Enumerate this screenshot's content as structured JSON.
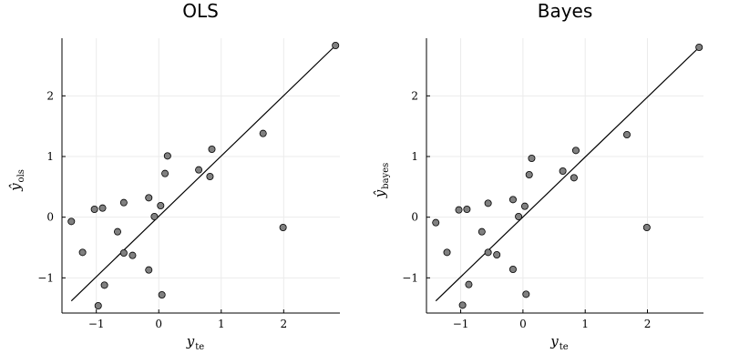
{
  "chart_data": [
    {
      "type": "scatter",
      "title": "OLS",
      "xlabel": {
        "main": "y",
        "sub": "te"
      },
      "ylabel": {
        "main": "ŷ",
        "sub": "ols"
      },
      "xlim": [
        -1.55,
        2.9
      ],
      "ylim": [
        -1.58,
        2.95
      ],
      "xticks": [
        -1,
        0,
        1,
        2
      ],
      "yticks": [
        -1,
        0,
        1,
        2
      ],
      "xtick_labels": [
        "−1",
        "0",
        "1",
        "2"
      ],
      "ytick_labels": [
        "−1",
        "0",
        "1",
        "2"
      ],
      "grid": true,
      "reference_line": {
        "x": [
          -1.4,
          2.83
        ],
        "y": [
          -1.38,
          2.83
        ]
      },
      "points": [
        {
          "x": -1.4,
          "y": -0.07
        },
        {
          "x": -1.22,
          "y": -0.58
        },
        {
          "x": -1.03,
          "y": 0.13
        },
        {
          "x": -0.97,
          "y": -1.46
        },
        {
          "x": -0.9,
          "y": 0.15
        },
        {
          "x": -0.87,
          "y": -1.12
        },
        {
          "x": -0.66,
          "y": -0.24
        },
        {
          "x": -0.56,
          "y": 0.24
        },
        {
          "x": -0.56,
          "y": -0.59
        },
        {
          "x": -0.42,
          "y": -0.63
        },
        {
          "x": -0.16,
          "y": 0.32
        },
        {
          "x": -0.16,
          "y": -0.87
        },
        {
          "x": -0.07,
          "y": 0.01
        },
        {
          "x": 0.03,
          "y": 0.19
        },
        {
          "x": 0.05,
          "y": -1.28
        },
        {
          "x": 0.1,
          "y": 0.72
        },
        {
          "x": 0.14,
          "y": 1.01
        },
        {
          "x": 0.64,
          "y": 0.78
        },
        {
          "x": 0.82,
          "y": 0.67
        },
        {
          "x": 0.85,
          "y": 1.12
        },
        {
          "x": 1.67,
          "y": 1.38
        },
        {
          "x": 1.99,
          "y": -0.17
        },
        {
          "x": 2.83,
          "y": 2.83
        }
      ]
    },
    {
      "type": "scatter",
      "title": "Bayes",
      "xlabel": {
        "main": "y",
        "sub": "te"
      },
      "ylabel": {
        "main": "ŷ",
        "sub": "bayes"
      },
      "xlim": [
        -1.55,
        2.9
      ],
      "ylim": [
        -1.58,
        2.95
      ],
      "xticks": [
        -1,
        0,
        1,
        2
      ],
      "yticks": [
        -1,
        0,
        1,
        2
      ],
      "xtick_labels": [
        "−1",
        "0",
        "1",
        "2"
      ],
      "ytick_labels": [
        "−1",
        "0",
        "1",
        "2"
      ],
      "grid": true,
      "reference_line": {
        "x": [
          -1.4,
          2.83
        ],
        "y": [
          -1.38,
          2.8
        ]
      },
      "points": [
        {
          "x": -1.4,
          "y": -0.09
        },
        {
          "x": -1.22,
          "y": -0.58
        },
        {
          "x": -1.03,
          "y": 0.12
        },
        {
          "x": -0.97,
          "y": -1.45
        },
        {
          "x": -0.9,
          "y": 0.13
        },
        {
          "x": -0.87,
          "y": -1.11
        },
        {
          "x": -0.66,
          "y": -0.24
        },
        {
          "x": -0.56,
          "y": 0.23
        },
        {
          "x": -0.56,
          "y": -0.58
        },
        {
          "x": -0.42,
          "y": -0.62
        },
        {
          "x": -0.16,
          "y": 0.29
        },
        {
          "x": -0.16,
          "y": -0.86
        },
        {
          "x": -0.07,
          "y": 0.01
        },
        {
          "x": 0.03,
          "y": 0.18
        },
        {
          "x": 0.05,
          "y": -1.27
        },
        {
          "x": 0.1,
          "y": 0.7
        },
        {
          "x": 0.14,
          "y": 0.97
        },
        {
          "x": 0.64,
          "y": 0.76
        },
        {
          "x": 0.82,
          "y": 0.65
        },
        {
          "x": 0.85,
          "y": 1.1
        },
        {
          "x": 1.67,
          "y": 1.36
        },
        {
          "x": 1.99,
          "y": -0.17
        },
        {
          "x": 2.83,
          "y": 2.8
        }
      ]
    }
  ]
}
